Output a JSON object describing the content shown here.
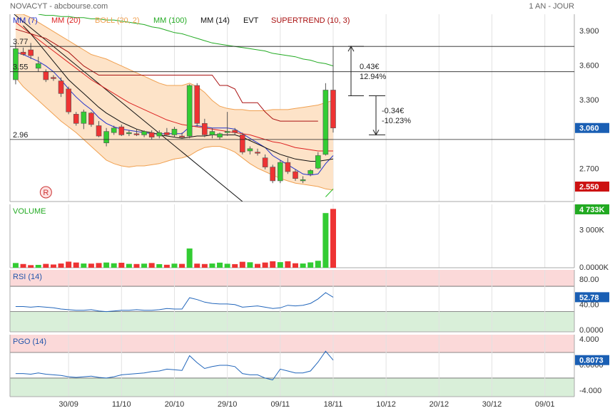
{
  "header": {
    "title": "NOVACYT - abcbourse.com",
    "period": "1 AN - JOUR"
  },
  "chart_data": [
    {
      "type": "candlestick",
      "up_color": "#33cc33",
      "down_color": "#ee3333",
      "open": [
        3.48,
        3.72,
        3.74,
        3.58,
        3.55,
        3.5,
        3.47,
        3.4,
        3.18,
        3.1,
        3.19,
        3.08,
        2.93,
        3.02,
        3.07,
        3.01,
        3.01,
        3.0,
        3.02,
        2.99,
        3.02,
        3.0,
        2.99,
        2.99,
        3.43,
        3.1,
        3.0,
        2.98,
        3.02,
        3.04,
        3.0,
        2.86,
        2.85,
        2.8,
        2.72,
        2.6,
        2.76,
        2.68,
        2.6,
        2.66,
        2.71,
        2.83,
        3.39
      ],
      "high": [
        3.8,
        3.76,
        3.8,
        3.68,
        3.57,
        3.52,
        3.5,
        3.42,
        3.2,
        3.22,
        3.2,
        3.12,
        3.06,
        3.08,
        3.09,
        3.04,
        3.05,
        3.04,
        3.04,
        3.04,
        3.06,
        3.07,
        3.02,
        3.44,
        3.45,
        3.14,
        3.06,
        3.02,
        3.2,
        3.06,
        3.02,
        2.9,
        2.88,
        2.83,
        2.74,
        2.78,
        2.8,
        2.7,
        2.64,
        2.7,
        2.85,
        3.45,
        3.77
      ],
      "low": [
        3.44,
        3.69,
        3.66,
        3.55,
        3.46,
        3.47,
        3.33,
        3.18,
        3.08,
        3.05,
        3.07,
        2.98,
        2.9,
        3.0,
        2.99,
        2.99,
        2.99,
        2.98,
        2.96,
        2.97,
        2.99,
        2.98,
        2.97,
        2.97,
        3.07,
        2.98,
        2.97,
        2.96,
        2.99,
        3.0,
        2.83,
        2.83,
        2.82,
        2.7,
        2.58,
        2.58,
        2.66,
        2.6,
        2.58,
        2.64,
        2.7,
        2.82,
        3.02
      ],
      "close": [
        3.75,
        3.7,
        3.69,
        3.62,
        3.48,
        3.49,
        3.36,
        3.2,
        3.1,
        3.2,
        3.09,
        2.99,
        3.03,
        3.06,
        3.0,
        3.02,
        3.0,
        3.03,
        2.98,
        3.02,
        3.0,
        3.05,
        2.98,
        3.43,
        3.1,
        3.0,
        3.03,
        3.01,
        3.03,
        3.02,
        2.85,
        2.88,
        2.84,
        2.72,
        2.6,
        2.76,
        2.68,
        2.62,
        2.61,
        2.69,
        2.82,
        3.39,
        3.06
      ],
      "series": [
        {
          "name": "MM (7)",
          "color": "#2233cc",
          "values": [
            3.72,
            3.7,
            3.67,
            3.64,
            3.6,
            3.55,
            3.48,
            3.4,
            3.33,
            3.27,
            3.22,
            3.15,
            3.1,
            3.07,
            3.05,
            3.04,
            3.03,
            3.02,
            3.01,
            3.01,
            3.01,
            3.01,
            3.01,
            3.07,
            3.08,
            3.07,
            3.06,
            3.06,
            3.06,
            3.05,
            3.01,
            2.97,
            2.93,
            2.89,
            2.82,
            2.78,
            2.74,
            2.7,
            2.66,
            2.65,
            2.66,
            2.75,
            2.82
          ]
        },
        {
          "name": "MM (20)",
          "color": "#dd2222",
          "values": [
            3.98,
            3.93,
            3.88,
            3.83,
            3.78,
            3.73,
            3.68,
            3.63,
            3.58,
            3.53,
            3.48,
            3.44,
            3.4,
            3.36,
            3.32,
            3.28,
            3.25,
            3.22,
            3.19,
            3.16,
            3.13,
            3.11,
            3.09,
            3.08,
            3.07,
            3.06,
            3.05,
            3.04,
            3.03,
            3.02,
            3.01,
            3.0,
            2.98,
            2.96,
            2.94,
            2.93,
            2.91,
            2.89,
            2.88,
            2.87,
            2.86,
            2.86,
            2.86
          ]
        },
        {
          "name": "BOLL (20, 2)",
          "color": "#f0a050",
          "fill": "#fde3c8",
          "upper": [
            4.05,
            4.05,
            4.02,
            3.98,
            3.94,
            3.9,
            3.86,
            3.82,
            3.78,
            3.74,
            3.7,
            3.68,
            3.66,
            3.63,
            3.6,
            3.57,
            3.54,
            3.51,
            3.48,
            3.45,
            3.43,
            3.43,
            3.43,
            3.45,
            3.42,
            3.37,
            3.3,
            3.25,
            3.23,
            3.22,
            3.22,
            3.21,
            3.21,
            3.21,
            3.22,
            3.22,
            3.22,
            3.23,
            3.24,
            3.25,
            3.26,
            3.28,
            3.3
          ],
          "lower": [
            3.5,
            3.42,
            3.36,
            3.3,
            3.24,
            3.18,
            3.12,
            3.07,
            3.02,
            2.96,
            2.9,
            2.84,
            2.78,
            2.75,
            2.73,
            2.72,
            2.73,
            2.73,
            2.74,
            2.75,
            2.77,
            2.79,
            2.8,
            2.82,
            2.86,
            2.89,
            2.9,
            2.9,
            2.88,
            2.85,
            2.8,
            2.75,
            2.71,
            2.68,
            2.65,
            2.62,
            2.6,
            2.58,
            2.57,
            2.56,
            2.55,
            2.53,
            2.52
          ]
        },
        {
          "name": "MM (100)",
          "color": "#22aa22",
          "values": [
            null,
            null,
            null,
            4.05,
            4.04,
            4.04,
            4.03,
            4.03,
            4.02,
            4.02,
            4.01,
            4.01,
            4.0,
            4.0,
            3.99,
            3.98,
            3.97,
            3.96,
            3.94,
            3.93,
            3.91,
            3.89,
            3.88,
            3.86,
            3.84,
            3.82,
            3.8,
            3.79,
            3.78,
            3.77,
            3.76,
            3.75,
            3.74,
            3.73,
            3.71,
            3.7,
            3.69,
            3.68,
            3.66,
            3.65,
            3.63,
            3.62,
            3.6
          ]
        },
        {
          "name": "MM (14)",
          "color": "#111111",
          "values": [
            null,
            3.95,
            3.88,
            3.8,
            3.72,
            3.64,
            3.56,
            3.48,
            3.42,
            3.36,
            3.3,
            3.24,
            3.19,
            3.15,
            3.11,
            3.08,
            3.05,
            3.03,
            3.02,
            3.0,
            2.99,
            2.98,
            2.97,
            2.98,
            2.99,
            2.99,
            3.0,
            3.0,
            3.0,
            3.0,
            2.98,
            2.95,
            2.92,
            2.89,
            2.86,
            2.83,
            2.81,
            2.79,
            2.78,
            2.77,
            2.77,
            2.78,
            2.79
          ]
        },
        {
          "name": "EVT",
          "color": "#111111",
          "labels": [
            "R"
          ],
          "x": [
            4
          ]
        },
        {
          "name": "SUPERTREND (10, 3)",
          "color": "#aa1111",
          "values": [
            3.92,
            3.9,
            3.88,
            3.86,
            3.84,
            3.8,
            3.76,
            3.72,
            3.66,
            3.6,
            3.56,
            3.52,
            3.52,
            3.52,
            3.52,
            3.52,
            3.52,
            3.52,
            3.52,
            3.52,
            3.52,
            3.52,
            3.52,
            3.52,
            3.52,
            3.52,
            3.52,
            3.43,
            3.43,
            3.4,
            3.28,
            3.28,
            3.28,
            3.2,
            3.14,
            3.12,
            3.12,
            3.12,
            3.12,
            3.12,
            3.12,
            null,
            null
          ],
          "support_color": "#22bb22",
          "support_values": [
            null,
            null,
            null,
            null,
            null,
            null,
            null,
            null,
            null,
            null,
            null,
            null,
            null,
            null,
            null,
            null,
            null,
            null,
            null,
            null,
            null,
            null,
            null,
            null,
            null,
            null,
            null,
            null,
            null,
            null,
            null,
            null,
            null,
            null,
            null,
            null,
            null,
            null,
            null,
            null,
            null,
            2.46,
            2.53
          ]
        }
      ],
      "trendline": {
        "color": "#111111",
        "points": [
          [
            -0.2,
            4.05
          ],
          [
            30,
            2.42
          ]
        ]
      },
      "hlines": [
        3.77,
        3.55,
        2.96
      ],
      "measures": [
        {
          "from": 3.34,
          "to": 3.77,
          "labels": [
            "0.43€",
            "12.94%"
          ]
        },
        {
          "from": 3.34,
          "to": 3.0,
          "labels": [
            "-0.34€",
            "-10.23%"
          ]
        }
      ],
      "markers": [
        {
          "value": 3.06,
          "label": "3.060",
          "color": "#1a5fb4"
        },
        {
          "value": 2.55,
          "label": "2.550",
          "color": "#cc1111"
        }
      ],
      "ylim": [
        2.42,
        4.05
      ],
      "yticks": [
        {
          "value": 3.9,
          "label": "3.900"
        },
        {
          "value": 3.6,
          "label": "3.600"
        },
        {
          "value": 3.3,
          "label": "3.300"
        },
        {
          "value": 2.7,
          "label": "2.700"
        }
      ]
    },
    {
      "type": "bar",
      "title": "VOLUME",
      "title_color": "#22aa22",
      "values": [
        380,
        300,
        210,
        230,
        310,
        260,
        340,
        490,
        420,
        340,
        330,
        380,
        420,
        360,
        400,
        310,
        300,
        330,
        380,
        290,
        240,
        330,
        310,
        1550,
        330,
        300,
        340,
        410,
        320,
        290,
        480,
        440,
        310,
        420,
        520,
        450,
        520,
        360,
        340,
        430,
        560,
        4400,
        4733
      ],
      "markers": [
        {
          "value": 4733,
          "label": "4 733K",
          "color": "#22aa22"
        }
      ],
      "ylim": [
        0,
        5100
      ],
      "yticks": [
        {
          "value": 3000,
          "label": "3 000K"
        },
        {
          "value": 0,
          "label": "0.0000K"
        }
      ]
    },
    {
      "type": "line",
      "title": "RSI (14)",
      "title_color": "#2255aa",
      "color": "#2266bb",
      "values": [
        38,
        38,
        37,
        38,
        37,
        36,
        34,
        33,
        32,
        32,
        33,
        31,
        30,
        31,
        32,
        32,
        33,
        32,
        32,
        33,
        35,
        34,
        34,
        52,
        49,
        45,
        43,
        42,
        42,
        41,
        37,
        38,
        39,
        37,
        35,
        36,
        40,
        39,
        40,
        43,
        50,
        60,
        52.78
      ],
      "overbought": 70,
      "oversold": 30,
      "overbought_color": "#fbd9d9",
      "oversold_color": "#d9efd9",
      "markers": [
        {
          "value": 52.78,
          "color": "#1a5fb4"
        }
      ],
      "ylim": [
        -2,
        96
      ],
      "yticks": [
        {
          "value": 80,
          "label": "80.00"
        },
        {
          "value": 40,
          "label": "40.00"
        },
        {
          "value": 0,
          "label": "0.0000"
        }
      ]
    },
    {
      "type": "line",
      "title": "PGO (14)",
      "title_color": "#2255aa",
      "color": "#2266bb",
      "values": [
        -1.3,
        -1.3,
        -1.4,
        -1.2,
        -1.4,
        -1.5,
        -1.6,
        -1.8,
        -1.9,
        -1.8,
        -1.7,
        -1.9,
        -2.0,
        -1.8,
        -1.5,
        -1.4,
        -1.3,
        -1.2,
        -1.0,
        -0.9,
        -0.6,
        -0.7,
        -0.8,
        1.5,
        0.4,
        -0.5,
        -0.2,
        0,
        0,
        -0.2,
        -1.3,
        -1.5,
        -1.5,
        -2.0,
        -2.3,
        -0.6,
        -0.9,
        -1.2,
        -1.2,
        -0.9,
        0.5,
        2.2,
        0.8073
      ],
      "overbought": 2,
      "oversold": -2,
      "overbought_color": "#fbd9d9",
      "oversold_color": "#d9efd9",
      "markers": [
        {
          "value": 0.8073,
          "color": "#1a5fb4"
        }
      ],
      "ylim": [
        -4.9,
        4.78
      ],
      "yticks": [
        {
          "value": 4,
          "label": "4.000"
        },
        {
          "value": 0,
          "label": "0.0000"
        },
        {
          "value": -4,
          "label": "-4.000"
        }
      ],
      "xlim": [
        -0.75,
        73.9
      ],
      "xticks": [
        {
          "value": 7,
          "label": "30/09"
        },
        {
          "value": 14,
          "label": "11/10"
        },
        {
          "value": 21,
          "label": "20/10"
        },
        {
          "value": 28,
          "label": "29/10"
        },
        {
          "value": 35,
          "label": "09/11"
        },
        {
          "value": 42,
          "label": "18/11"
        },
        {
          "value": 49,
          "label": "10/12"
        },
        {
          "value": 56,
          "label": "20/12"
        },
        {
          "value": 63,
          "label": "30/12"
        },
        {
          "value": 70,
          "label": "09/01"
        }
      ]
    }
  ]
}
